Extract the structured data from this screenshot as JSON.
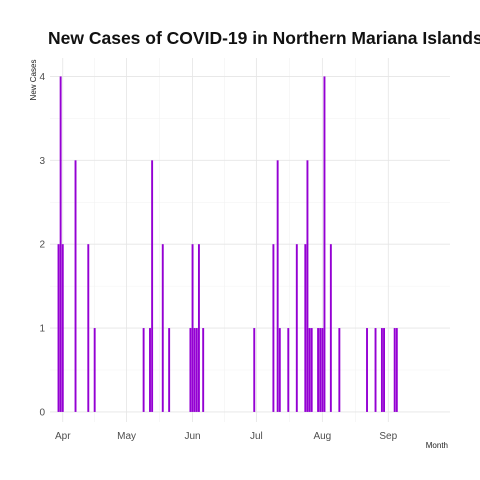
{
  "chart_data": {
    "type": "bar",
    "title": "New Cases of COVID-19 in Northern Mariana Islands",
    "xlabel": "Month",
    "ylabel": "New Cases",
    "ylim": [
      -0.12,
      4.22
    ],
    "yticks": [
      0,
      1,
      2,
      3,
      4
    ],
    "xlim": [
      "2020-03-26",
      "2020-09-30"
    ],
    "xticks": [
      {
        "date": "2020-04-01",
        "label": "Apr"
      },
      {
        "date": "2020-05-01",
        "label": "May"
      },
      {
        "date": "2020-06-01",
        "label": "Jun"
      },
      {
        "date": "2020-07-01",
        "label": "Jul"
      },
      {
        "date": "2020-08-01",
        "label": "Aug"
      },
      {
        "date": "2020-09-01",
        "label": "Sep"
      }
    ],
    "grid": true,
    "bar_color": "#9400D3",
    "x": [
      "2020-03-30",
      "2020-03-31",
      "2020-04-01",
      "2020-04-07",
      "2020-04-13",
      "2020-04-16",
      "2020-05-09",
      "2020-05-12",
      "2020-05-13",
      "2020-05-18",
      "2020-05-21",
      "2020-05-31",
      "2020-06-01",
      "2020-06-02",
      "2020-06-03",
      "2020-06-04",
      "2020-06-06",
      "2020-06-30",
      "2020-07-09",
      "2020-07-11",
      "2020-07-12",
      "2020-07-16",
      "2020-07-20",
      "2020-07-24",
      "2020-07-25",
      "2020-07-26",
      "2020-07-27",
      "2020-07-30",
      "2020-07-31",
      "2020-08-01",
      "2020-08-02",
      "2020-08-05",
      "2020-08-09",
      "2020-08-22",
      "2020-08-26",
      "2020-08-29",
      "2020-08-30",
      "2020-09-04",
      "2020-09-05"
    ],
    "values": [
      2,
      4,
      2,
      3,
      2,
      1,
      1,
      1,
      3,
      2,
      1,
      1,
      2,
      1,
      1,
      2,
      1,
      1,
      2,
      3,
      1,
      1,
      2,
      2,
      3,
      1,
      1,
      1,
      1,
      1,
      4,
      2,
      1,
      1,
      1,
      1,
      1,
      1,
      1
    ]
  }
}
